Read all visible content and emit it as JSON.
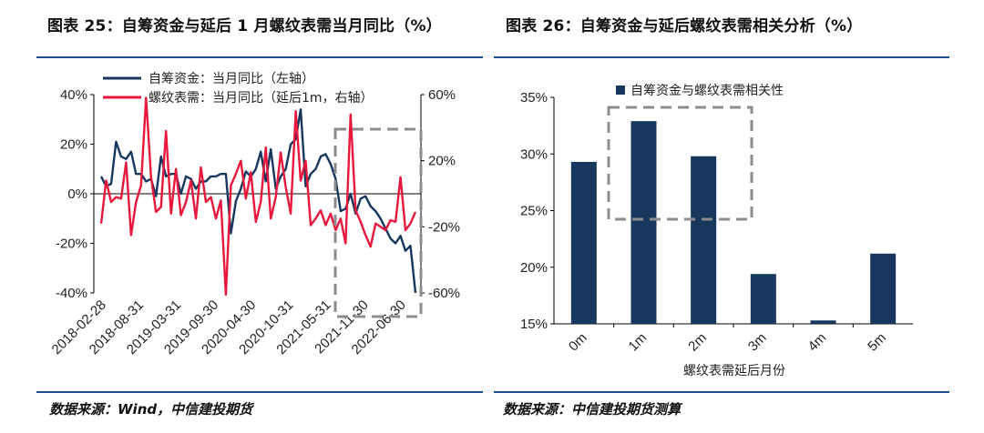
{
  "left": {
    "title": "图表 25：自筹资金与延后 1 月螺纹表需当月同比（%）",
    "source": "数据来源：Wind，中信建投期货"
  },
  "right": {
    "title": "图表 26：自筹资金与延后螺纹表需相关分析（%）",
    "source": "数据来源：中信建投期货测算"
  },
  "colors": {
    "navy": "#17375e",
    "red": "#e8173c",
    "rule": "#1f4e8c",
    "box": "#8c8c8c"
  },
  "chart_data": [
    {
      "type": "line",
      "x_tick_labels": [
        "2018-02-28",
        "2018-08-31",
        "2019-03-31",
        "2019-09-30",
        "2020-04-30",
        "2020-10-31",
        "2021-05-31",
        "2021-11-30",
        "2022-06-30"
      ],
      "y_left": {
        "ticks": [
          "40%",
          "20%",
          "0%",
          "-20%",
          "-40%"
        ],
        "ylim": [
          -40,
          40
        ]
      },
      "y_right": {
        "ticks": [
          "60%",
          "20%",
          "-20%",
          "-60%"
        ],
        "ylim": [
          -60,
          60
        ]
      },
      "legend_position": "top",
      "series": [
        {
          "name": "自筹资金：当月同比（左轴）",
          "axis": "left",
          "color": "#17375e",
          "values": [
            7,
            3,
            4,
            21,
            15,
            14,
            17,
            8,
            8,
            5,
            6,
            -1,
            15,
            7,
            8,
            8,
            0,
            7,
            6,
            2,
            5,
            5,
            7,
            7,
            8,
            8,
            -16,
            -3,
            2,
            9,
            7,
            10,
            17,
            5,
            18,
            2,
            7,
            10,
            20,
            22,
            34,
            3,
            8,
            10,
            15,
            16,
            12,
            6,
            -7,
            -6,
            0,
            -8,
            -2,
            -1,
            -5,
            -7,
            -10,
            -14,
            -18,
            -20,
            -17,
            -23,
            -21,
            -40
          ]
        },
        {
          "name": "螺纹表需：当月同比（延后1m，右轴）",
          "axis": "right",
          "color": "#e8173c",
          "values": [
            -18,
            8,
            -5,
            -2,
            -3,
            19,
            -25,
            -5,
            5,
            58,
            10,
            -11,
            -8,
            38,
            -12,
            15,
            -13,
            -5,
            8,
            -15,
            16,
            -5,
            -2,
            -15,
            -4,
            -61,
            5,
            12,
            20,
            -3,
            13,
            -17,
            -5,
            28,
            -15,
            -2,
            25,
            4,
            -12,
            50,
            8,
            20,
            -19,
            -15,
            -10,
            -19,
            -12,
            -22,
            -15,
            -30,
            48,
            -10,
            -17,
            -25,
            -32,
            -18,
            -20,
            -22,
            -16,
            -17,
            10,
            -22,
            -18,
            -11
          ]
        }
      ]
    },
    {
      "type": "bar",
      "categories": [
        "0m",
        "1m",
        "2m",
        "3m",
        "4m",
        "5m"
      ],
      "series": [
        {
          "name": "自筹资金与螺纹表需相关性",
          "values": [
            29.3,
            32.9,
            29.8,
            19.4,
            15.3,
            21.2
          ]
        }
      ],
      "y_ticks": [
        "35%",
        "30%",
        "25%",
        "20%",
        "15%"
      ],
      "ylim": [
        15,
        35
      ],
      "xlabel": "螺纹表需延后月份",
      "color": "#17375e"
    }
  ]
}
